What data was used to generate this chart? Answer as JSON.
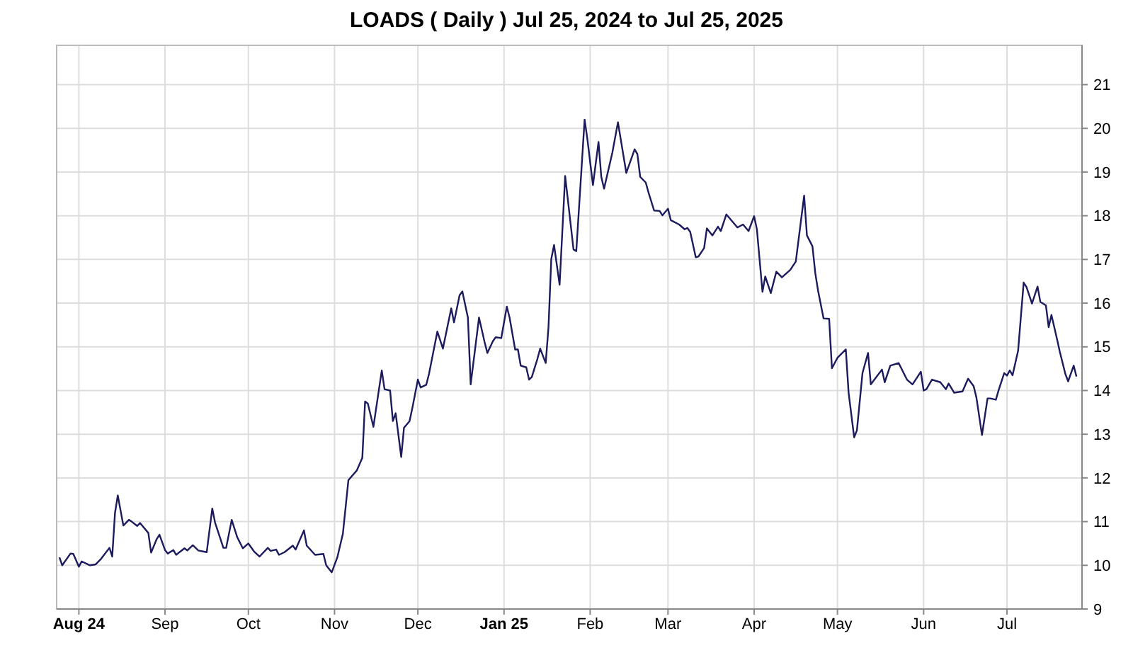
{
  "chart_data": {
    "type": "line",
    "title": "LOADS ( Daily ) Jul 25, 2024 to Jul 25, 2025",
    "xlim": [
      "2024-07-24",
      "2025-07-28"
    ],
    "xticks": [
      {
        "value": "2024-08-01",
        "label": "Aug 24"
      },
      {
        "value": "2024-09-01",
        "label": "Sep"
      },
      {
        "value": "2024-10-01",
        "label": "Oct"
      },
      {
        "value": "2024-11-01",
        "label": "Nov"
      },
      {
        "value": "2024-12-01",
        "label": "Dec"
      },
      {
        "value": "2025-01-01",
        "label": "Jan 25"
      },
      {
        "value": "2025-02-01",
        "label": "Feb"
      },
      {
        "value": "2025-03-01",
        "label": "Mar"
      },
      {
        "value": "2025-04-01",
        "label": "Apr"
      },
      {
        "value": "2025-05-01",
        "label": "May"
      },
      {
        "value": "2025-06-01",
        "label": "Jun"
      },
      {
        "value": "2025-07-01",
        "label": "Jul"
      }
    ],
    "ylim": [
      9,
      21.9
    ],
    "yticks": [
      9,
      10,
      11,
      12,
      13,
      14,
      15,
      16,
      17,
      18,
      19,
      20,
      21
    ],
    "grid": true,
    "marker": "none",
    "line_style": "solid",
    "x": [
      "2024-07-25",
      "2024-07-26",
      "2024-07-29",
      "2024-07-30",
      "2024-08-01",
      "2024-08-02",
      "2024-08-05",
      "2024-08-07",
      "2024-08-09",
      "2024-08-12",
      "2024-08-13",
      "2024-08-14",
      "2024-08-15",
      "2024-08-17",
      "2024-08-19",
      "2024-08-20",
      "2024-08-22",
      "2024-08-23",
      "2024-08-26",
      "2024-08-27",
      "2024-08-29",
      "2024-08-30",
      "2024-09-01",
      "2024-09-02",
      "2024-09-04",
      "2024-09-05",
      "2024-09-08",
      "2024-09-09",
      "2024-09-11",
      "2024-09-13",
      "2024-09-16",
      "2024-09-18",
      "2024-09-19",
      "2024-09-22",
      "2024-09-23",
      "2024-09-25",
      "2024-09-27",
      "2024-09-29",
      "2024-10-01",
      "2024-10-03",
      "2024-10-05",
      "2024-10-08",
      "2024-10-09",
      "2024-10-11",
      "2024-10-12",
      "2024-10-14",
      "2024-10-17",
      "2024-10-18",
      "2024-10-21",
      "2024-10-22",
      "2024-10-25",
      "2024-10-28",
      "2024-10-29",
      "2024-10-31",
      "2024-11-02",
      "2024-11-04",
      "2024-11-06",
      "2024-11-09",
      "2024-11-11",
      "2024-11-12",
      "2024-11-13",
      "2024-11-15",
      "2024-11-18",
      "2024-11-19",
      "2024-11-21",
      "2024-11-22",
      "2024-11-23",
      "2024-11-25",
      "2024-11-26",
      "2024-11-28",
      "2024-11-29",
      "2024-12-01",
      "2024-12-02",
      "2024-12-04",
      "2024-12-05",
      "2024-12-08",
      "2024-12-10",
      "2024-12-13",
      "2024-12-14",
      "2024-12-16",
      "2024-12-17",
      "2024-12-19",
      "2024-12-20",
      "2024-12-23",
      "2024-12-25",
      "2024-12-26",
      "2024-12-28",
      "2024-12-29",
      "2024-12-31",
      "2025-01-02",
      "2025-01-03",
      "2025-01-05",
      "2025-01-06",
      "2025-01-07",
      "2025-01-09",
      "2025-01-10",
      "2025-01-11",
      "2025-01-13",
      "2025-01-14",
      "2025-01-16",
      "2025-01-17",
      "2025-01-18",
      "2025-01-19",
      "2025-01-21",
      "2025-01-23",
      "2025-01-26",
      "2025-01-27",
      "2025-01-30",
      "2025-01-31",
      "2025-02-02",
      "2025-02-04",
      "2025-02-05",
      "2025-02-06",
      "2025-02-09",
      "2025-02-11",
      "2025-02-12",
      "2025-02-14",
      "2025-02-17",
      "2025-02-18",
      "2025-02-19",
      "2025-02-21",
      "2025-02-22",
      "2025-02-24",
      "2025-02-26",
      "2025-02-27",
      "2025-03-01",
      "2025-03-02",
      "2025-03-05",
      "2025-03-07",
      "2025-03-08",
      "2025-03-09",
      "2025-03-11",
      "2025-03-12",
      "2025-03-14",
      "2025-03-15",
      "2025-03-17",
      "2025-03-19",
      "2025-03-20",
      "2025-03-22",
      "2025-03-24",
      "2025-03-26",
      "2025-03-28",
      "2025-03-30",
      "2025-04-01",
      "2025-04-02",
      "2025-04-04",
      "2025-04-05",
      "2025-04-07",
      "2025-04-09",
      "2025-04-11",
      "2025-04-14",
      "2025-04-16",
      "2025-04-19",
      "2025-04-20",
      "2025-04-22",
      "2025-04-23",
      "2025-04-24",
      "2025-04-26",
      "2025-04-28",
      "2025-04-29",
      "2025-05-01",
      "2025-05-04",
      "2025-05-05",
      "2025-05-07",
      "2025-05-08",
      "2025-05-10",
      "2025-05-12",
      "2025-05-13",
      "2025-05-17",
      "2025-05-18",
      "2025-05-20",
      "2025-05-23",
      "2025-05-26",
      "2025-05-28",
      "2025-05-31",
      "2025-06-01",
      "2025-06-02",
      "2025-06-04",
      "2025-06-07",
      "2025-06-09",
      "2025-06-10",
      "2025-06-12",
      "2025-06-15",
      "2025-06-17",
      "2025-06-19",
      "2025-06-20",
      "2025-06-22",
      "2025-06-24",
      "2025-06-25",
      "2025-06-27",
      "2025-06-28",
      "2025-06-30",
      "2025-07-01",
      "2025-07-02",
      "2025-07-03",
      "2025-07-05",
      "2025-07-07",
      "2025-07-08",
      "2025-07-10",
      "2025-07-12",
      "2025-07-13",
      "2025-07-15",
      "2025-07-16",
      "2025-07-17",
      "2025-07-19",
      "2025-07-20",
      "2025-07-22",
      "2025-07-23",
      "2025-07-25",
      "2025-07-26"
    ],
    "series": [
      {
        "color": "#1b1b5e",
        "values": [
          10.18,
          10.0,
          10.27,
          10.26,
          9.97,
          10.09,
          10.0,
          10.02,
          10.15,
          10.4,
          10.2,
          11.2,
          11.6,
          10.91,
          11.04,
          11.0,
          10.9,
          10.97,
          10.74,
          10.29,
          10.6,
          10.7,
          10.35,
          10.27,
          10.35,
          10.24,
          10.39,
          10.34,
          10.46,
          10.34,
          10.3,
          11.3,
          10.98,
          10.4,
          10.4,
          11.04,
          10.64,
          10.39,
          10.5,
          10.32,
          10.2,
          10.4,
          10.33,
          10.36,
          10.24,
          10.3,
          10.45,
          10.36,
          10.8,
          10.45,
          10.24,
          10.26,
          10.0,
          9.84,
          10.18,
          10.72,
          11.95,
          12.17,
          12.46,
          13.75,
          13.7,
          13.17,
          14.46,
          14.03,
          14.0,
          13.3,
          13.48,
          12.48,
          13.15,
          13.3,
          13.6,
          14.25,
          14.07,
          14.13,
          14.38,
          15.35,
          14.96,
          15.88,
          15.56,
          16.18,
          16.27,
          15.67,
          14.14,
          15.67,
          15.11,
          14.86,
          15.13,
          15.22,
          15.2,
          15.92,
          15.67,
          14.94,
          14.94,
          14.57,
          14.53,
          14.25,
          14.31,
          14.72,
          14.96,
          14.63,
          15.45,
          17.01,
          17.33,
          16.42,
          18.91,
          17.23,
          17.19,
          20.2,
          19.75,
          18.7,
          19.69,
          18.89,
          18.62,
          19.45,
          20.14,
          19.75,
          18.98,
          19.52,
          19.41,
          18.89,
          18.76,
          18.53,
          18.12,
          18.11,
          18.01,
          18.16,
          17.9,
          17.8,
          17.69,
          17.72,
          17.63,
          17.05,
          17.07,
          17.26,
          17.71,
          17.55,
          17.75,
          17.65,
          18.03,
          17.88,
          17.73,
          17.8,
          17.65,
          17.99,
          17.69,
          16.26,
          16.61,
          16.23,
          16.72,
          16.59,
          16.76,
          16.95,
          18.46,
          17.55,
          17.3,
          16.69,
          16.29,
          15.65,
          15.64,
          14.51,
          14.75,
          14.94,
          13.95,
          12.93,
          13.09,
          14.4,
          14.86,
          14.14,
          14.48,
          14.19,
          14.57,
          14.63,
          14.25,
          14.14,
          14.43,
          14.0,
          14.03,
          14.25,
          14.19,
          14.03,
          14.16,
          13.95,
          13.98,
          14.27,
          14.1,
          13.84,
          12.98,
          13.82,
          13.82,
          13.79,
          14.01,
          14.4,
          14.34,
          14.46,
          14.35,
          14.91,
          16.47,
          16.37,
          15.99,
          16.38,
          16.03,
          15.95,
          15.45,
          15.73,
          15.18,
          14.89,
          14.38,
          14.21,
          14.57,
          14.32
        ]
      }
    ]
  }
}
